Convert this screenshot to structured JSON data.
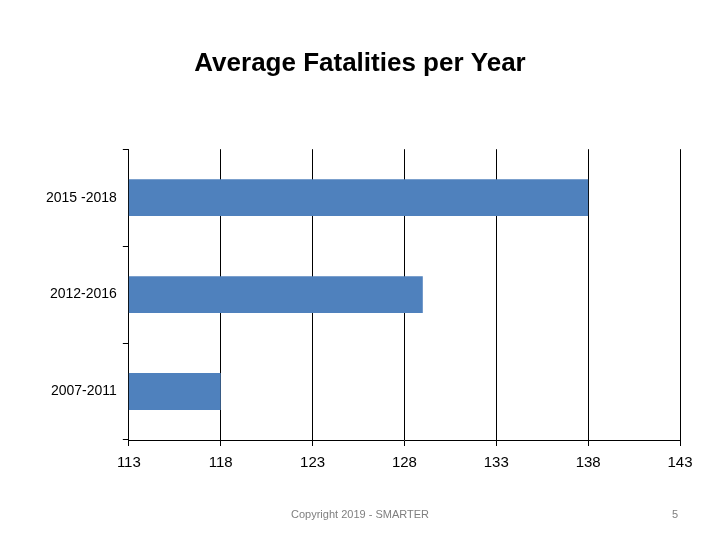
{
  "chart_data": {
    "type": "bar",
    "orientation": "horizontal",
    "title": "Average Fatalities per Year",
    "categories": [
      "2015 -2018",
      "2012-2016",
      "2007-2011"
    ],
    "values": [
      138,
      129,
      118
    ],
    "color": "#4f81bd",
    "xlim": [
      113,
      143
    ],
    "xticks": [
      113,
      118,
      123,
      128,
      133,
      138,
      143
    ],
    "grid": true,
    "footer": "Copyright 2019 - SMARTER",
    "page_number": 5
  }
}
